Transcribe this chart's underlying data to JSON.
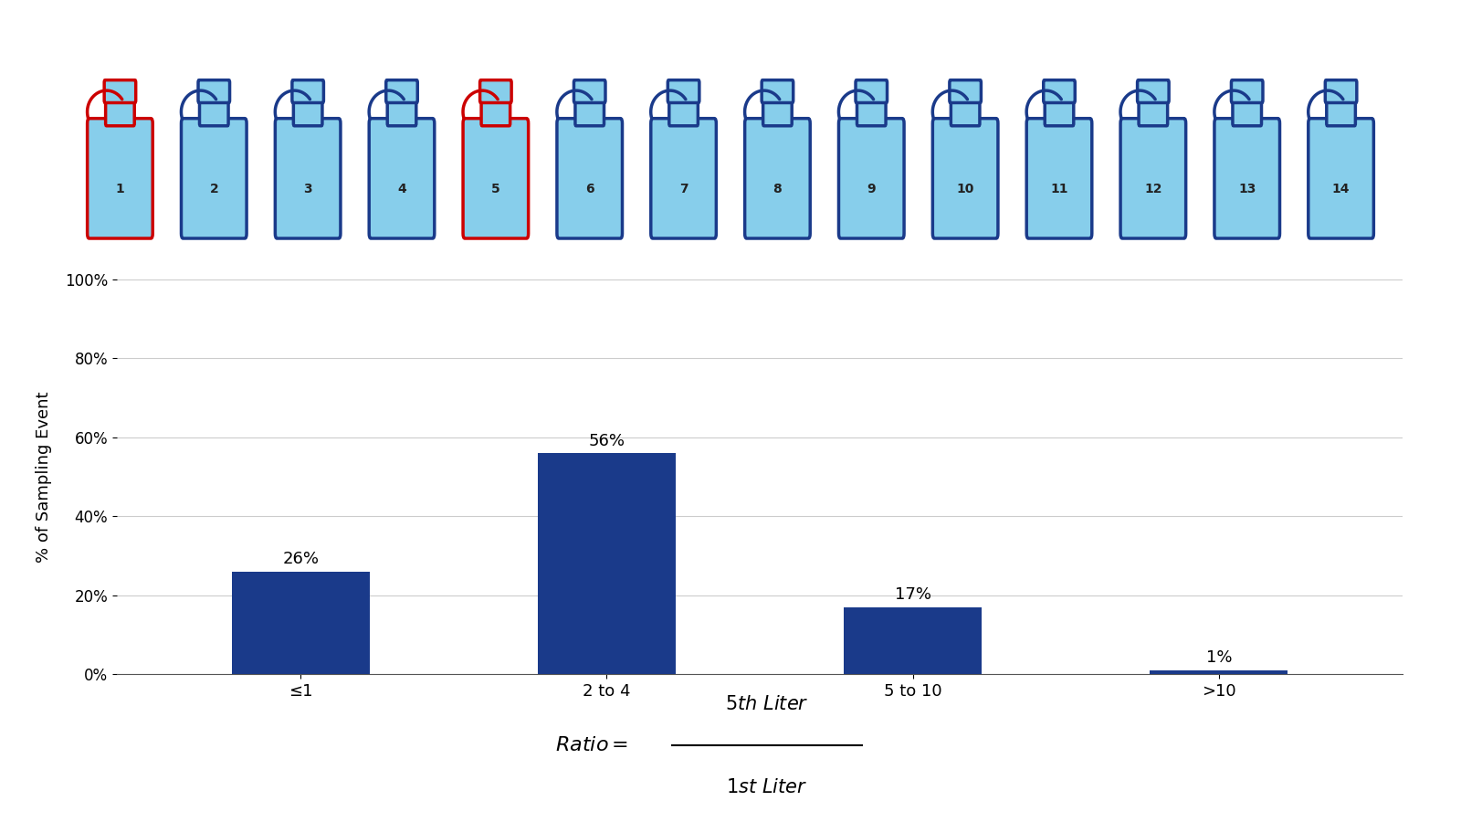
{
  "categories": [
    "≤1",
    "2 to 4",
    "5 to 10",
    ">10"
  ],
  "values": [
    26,
    56,
    17,
    1
  ],
  "bar_color": "#1a3a8a",
  "ylabel": "% of Sampling Event",
  "ylim": [
    0,
    100
  ],
  "yticks": [
    0,
    20,
    40,
    60,
    80,
    100
  ],
  "ytick_labels": [
    "0%",
    "20%",
    "40%",
    "60%",
    "80%",
    "100%"
  ],
  "background_color": "#ffffff",
  "bar_labels": [
    "26%",
    "56%",
    "17%",
    "1%"
  ],
  "num_bottles": 14,
  "red_bottles": [
    1,
    5
  ],
  "bottle_color_light": "#87CEEB",
  "bottle_color_blue_outline": "#1a3a8a",
  "bottle_color_red_outline": "#cc0000",
  "formula_text_italic": "Ratio = ",
  "formula_numerator": "5th Liter",
  "formula_denominator": "1st Liter",
  "grid_color": "#cccccc",
  "label_fontsize": 13,
  "tick_fontsize": 12,
  "bar_label_fontsize": 13,
  "ylabel_fontsize": 13
}
